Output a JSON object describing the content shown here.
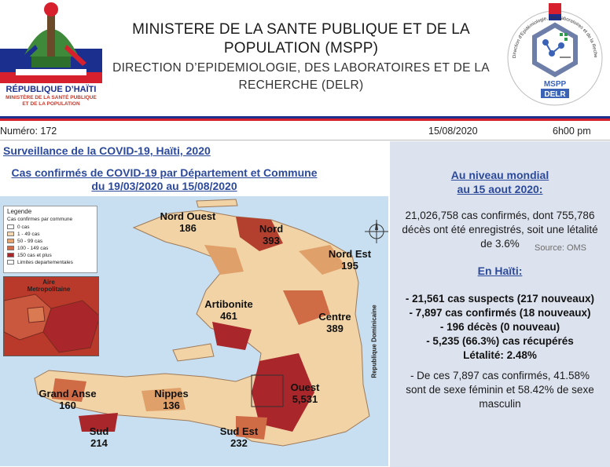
{
  "header": {
    "title_line1": "MINISTERE DE LA SANTE PUBLIQUE ET DE LA",
    "title_line2": "POPULATION (MSPP)",
    "subtitle_line1": "DIRECTION D’EPIDEMIOLOGIE, DES LABORATOIRES ET DE LA",
    "subtitle_line2": "RECHERCHE (DELR)",
    "republic": "RÉPUBLIQUE D’HAÏTI",
    "ministry_line1": "MINISTÈRE DE LA SANTÉ PUBLIQUE",
    "ministry_line2": "ET DE LA POPULATION",
    "right_logo_mspp": "MSPP",
    "right_logo_delr": "DELR",
    "right_logo_ring": "Direction d'Epidémiologie, des Laboratoires et de la Recherche"
  },
  "meta": {
    "number": "Numéro: 172",
    "date": "15/08/2020",
    "time": "6h00 pm"
  },
  "surveillance_title": "Surveillance de la COVID-19, Haïti, 2020",
  "map_title_line1": "Cas confirmés de COVID-19 par Département et Commune",
  "map_title_line2": "du 19/03/2020 au 15/08/2020",
  "legend": {
    "title": "Legende",
    "subtitle": "Cas confirmes par commune",
    "items": [
      {
        "label": "0 cas",
        "color": "#ffffff"
      },
      {
        "label": "1 - 49 cas",
        "color": "#f3d7b0"
      },
      {
        "label": "50 - 99 cas",
        "color": "#e6a56e"
      },
      {
        "label": "100 - 149 cas",
        "color": "#cf6b45"
      },
      {
        "label": "150 cas et plus",
        "color": "#a9262a"
      },
      {
        "label": "Limites departementales",
        "color": "#ffffff"
      }
    ]
  },
  "inset_label": "Aire Metropolitaine",
  "departments": [
    {
      "name": "Nord Ouest",
      "value": "186"
    },
    {
      "name": "Nord",
      "value": "393"
    },
    {
      "name": "Nord Est",
      "value": "195"
    },
    {
      "name": "Artibonite",
      "value": "461"
    },
    {
      "name": "Centre",
      "value": "389"
    },
    {
      "name": "Ouest",
      "value": "5,531"
    },
    {
      "name": "Grand Anse",
      "value": "160"
    },
    {
      "name": "Nippes",
      "value": "136"
    },
    {
      "name": "Sud",
      "value": "214"
    },
    {
      "name": "Sud Est",
      "value": "232"
    }
  ],
  "neighbor_label": "Republique Dominicaine",
  "world": {
    "heading_line1": "Au niveau mondial",
    "heading_line2": "au 15 aout 2020:",
    "text_line1": "21,026,758 cas confirmés, dont 755,786",
    "text_line2": "décès ont été enregistrés, soit une létalité",
    "text_line3": "de 3.6%",
    "source": "Source: OMS"
  },
  "haiti": {
    "heading": "En Haïti:",
    "line1": "- 21,561 cas suspects (217 nouveaux)",
    "line2": "- 7,897 cas confirmés (18 nouveaux)",
    "line3": "- 196 décès (0 nouveau)",
    "line4": "- 5,235 (66.3%) cas récupérés",
    "line5": "Létalité: 2.48%",
    "sex_line1": "- De ces 7,897 cas confirmés, 41.58%",
    "sex_line2": "sont de sexe féminin et 58.42% de sexe",
    "sex_line3": "masculin"
  }
}
